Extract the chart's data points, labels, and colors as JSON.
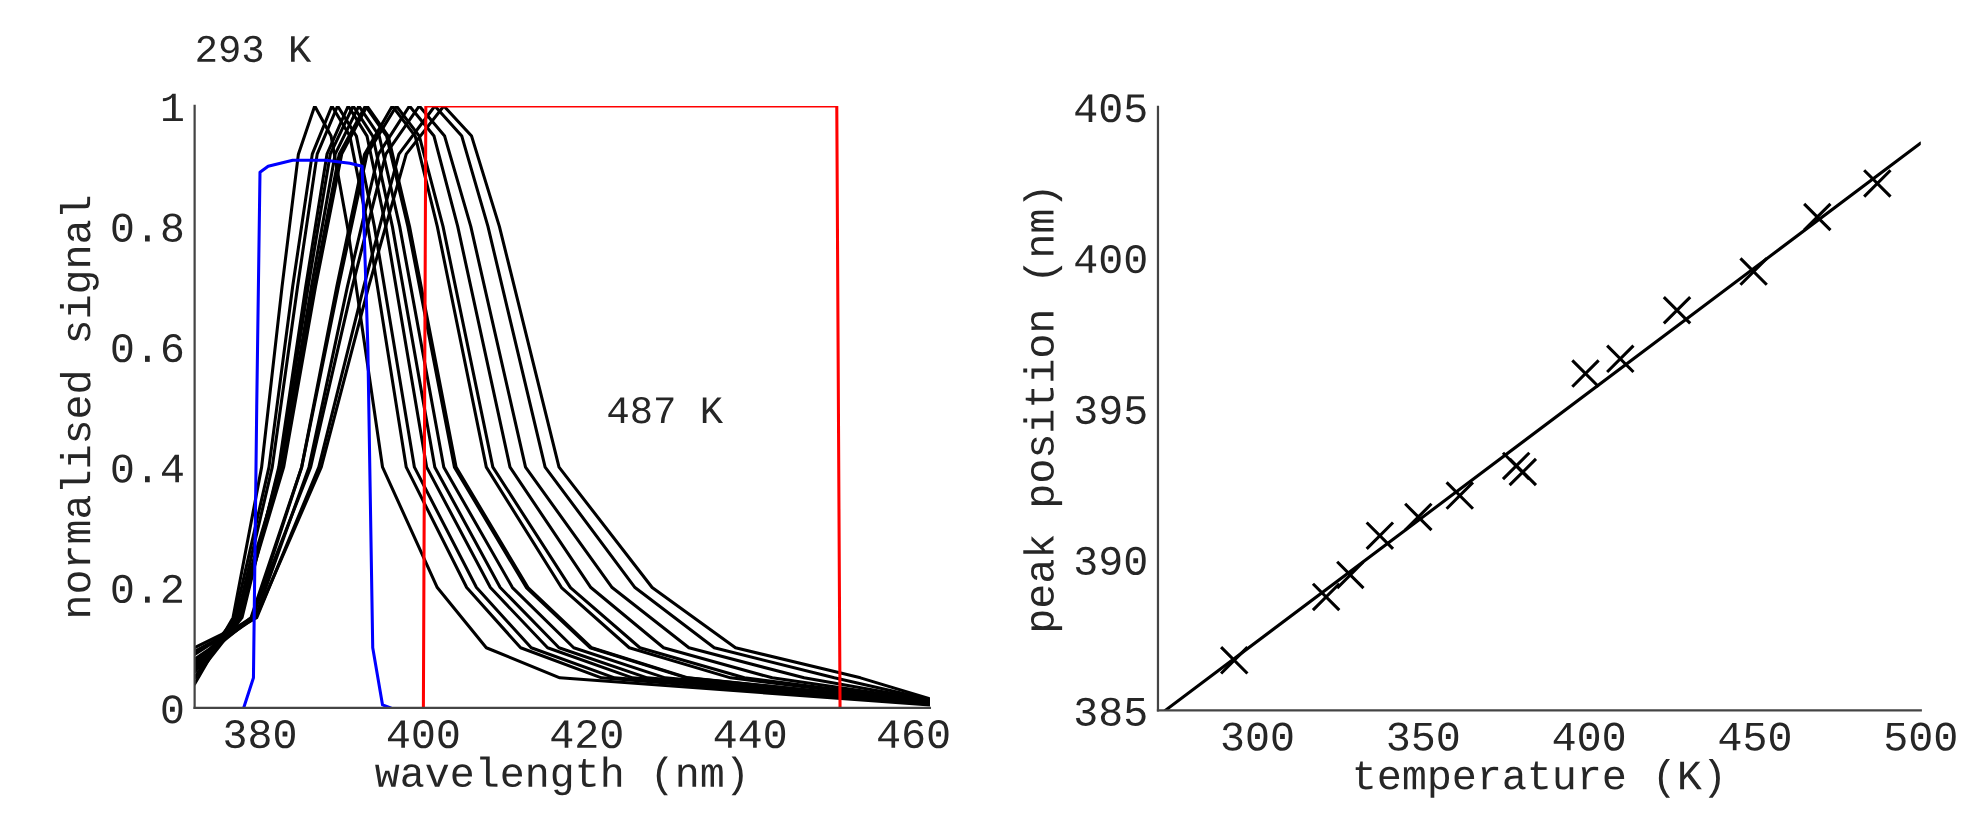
{
  "chart_data": [
    {
      "type": "line",
      "xlabel": "wavelength (nm)",
      "ylabel": "normalised signal",
      "xlim": [
        372,
        462
      ],
      "xticks": [
        380,
        400,
        420,
        440,
        460
      ],
      "ylim": [
        0,
        1
      ],
      "yticks": [
        0,
        0.2,
        0.4,
        0.6,
        0.8,
        1
      ],
      "grid": false,
      "legend": false,
      "marker": "none",
      "line_style": "solid",
      "annotations": [
        "293 K",
        "487 K"
      ],
      "series": [
        {
          "color": "#000000",
          "x": [
            372,
            376.7,
            380.2,
            382.7,
            384.7,
            386.7,
            388.7,
            390.7,
            395.0,
            401.7,
            407.7,
            416.7,
            462
          ],
          "values": [
            0.04,
            0.15,
            0.4,
            0.7,
            0.92,
            1,
            0.95,
            0.8,
            0.4,
            0.2,
            0.1,
            0.05,
            0.005
          ]
        },
        {
          "color": "#000000",
          "x": [
            372,
            376.9,
            381.1,
            384.0,
            386.4,
            388.8,
            391.0,
            393.2,
            397.9,
            405.3,
            411.9,
            421.8,
            462
          ],
          "values": [
            0.05,
            0.15,
            0.4,
            0.7,
            0.92,
            1,
            0.95,
            0.8,
            0.4,
            0.2,
            0.1,
            0.05,
            0.006
          ]
        },
        {
          "color": "#000000",
          "x": [
            372,
            377.2,
            381.5,
            384.6,
            387.0,
            389.5,
            391.8,
            394.0,
            398.9,
            406.5,
            413.2,
            423.4,
            462
          ],
          "values": [
            0.05,
            0.15,
            0.4,
            0.7,
            0.92,
            1,
            0.95,
            0.8,
            0.4,
            0.2,
            0.1,
            0.05,
            0.007
          ]
        },
        {
          "color": "#000000",
          "x": [
            372,
            377.8,
            382.3,
            385.6,
            388.2,
            390.8,
            393.1,
            395.4,
            400.4,
            408.2,
            415.2,
            425.6,
            462
          ],
          "values": [
            0.05,
            0.15,
            0.4,
            0.7,
            0.92,
            1,
            0.95,
            0.8,
            0.4,
            0.2,
            0.1,
            0.05,
            0.007
          ]
        },
        {
          "color": "#000000",
          "x": [
            372,
            377.6,
            382.4,
            385.9,
            388.6,
            391.4,
            393.8,
            396.2,
            401.4,
            409.4,
            416.6,
            427.4,
            462
          ],
          "values": [
            0.06,
            0.15,
            0.4,
            0.7,
            0.92,
            1,
            0.95,
            0.8,
            0.4,
            0.2,
            0.1,
            0.05,
            0.008
          ]
        },
        {
          "color": "#000000",
          "x": [
            372,
            377.5,
            382.6,
            386.3,
            389.2,
            392.1,
            394.6,
            397.1,
            402.5,
            410.9,
            418.4,
            429.6,
            462
          ],
          "values": [
            0.06,
            0.15,
            0.4,
            0.7,
            0.92,
            1,
            0.95,
            0.8,
            0.4,
            0.2,
            0.1,
            0.05,
            0.009
          ]
        },
        {
          "color": "#000000",
          "x": [
            372,
            377.4,
            382.9,
            386.8,
            390.0,
            393.1,
            395.7,
            398.3,
            404.0,
            412.8,
            420.6,
            432.4,
            462
          ],
          "values": [
            0.066,
            0.15,
            0.4,
            0.7,
            0.92,
            1,
            0.95,
            0.8,
            0.4,
            0.2,
            0.1,
            0.05,
            0.009
          ]
        },
        {
          "color": "#000000",
          "x": [
            372,
            377.1,
            382.6,
            386.6,
            389.7,
            392.9,
            395.5,
            398.1,
            403.8,
            412.6,
            420.4,
            432.2,
            462
          ],
          "values": [
            0.067,
            0.15,
            0.4,
            0.7,
            0.92,
            1,
            0.95,
            0.8,
            0.4,
            0.2,
            0.1,
            0.05,
            0.009
          ]
        },
        {
          "color": "#000000",
          "x": [
            372,
            379.1,
            385.1,
            389.4,
            392.8,
            396.2,
            399.0,
            401.7,
            407.7,
            416.9,
            425.2,
            437.6,
            462
          ],
          "values": [
            0.073,
            0.15,
            0.4,
            0.7,
            0.92,
            1,
            0.95,
            0.8,
            0.4,
            0.2,
            0.1,
            0.05,
            0.01
          ]
        },
        {
          "color": "#000000",
          "x": [
            372,
            378.9,
            385.1,
            389.6,
            393.1,
            396.7,
            399.5,
            402.4,
            408.5,
            418.0,
            426.5,
            439.3,
            462
          ],
          "values": [
            0.076,
            0.15,
            0.4,
            0.7,
            0.92,
            1,
            0.95,
            0.8,
            0.4,
            0.2,
            0.1,
            0.05,
            0.011
          ]
        },
        {
          "color": "#000000",
          "x": [
            372,
            379.4,
            386.0,
            390.7,
            394.5,
            398.3,
            401.3,
            404.2,
            410.6,
            420.5,
            429.4,
            442.7,
            462
          ],
          "values": [
            0.081,
            0.15,
            0.4,
            0.7,
            0.92,
            1,
            0.95,
            0.8,
            0.4,
            0.2,
            0.1,
            0.05,
            0.012
          ]
        },
        {
          "color": "#000000",
          "x": [
            372,
            379.0,
            386.2,
            391.3,
            395.4,
            399.5,
            402.6,
            405.8,
            412.5,
            423.1,
            432.5,
            446.6,
            462
          ],
          "values": [
            0.089,
            0.15,
            0.4,
            0.7,
            0.92,
            1,
            0.95,
            0.8,
            0.4,
            0.2,
            0.1,
            0.05,
            0.013
          ]
        },
        {
          "color": "#000000",
          "x": [
            372,
            379.6,
            387.2,
            392.7,
            397.0,
            401.4,
            404.7,
            407.9,
            414.9,
            425.9,
            435.6,
            450.3,
            462
          ],
          "values": [
            0.094,
            0.15,
            0.4,
            0.7,
            0.92,
            1,
            0.95,
            0.8,
            0.4,
            0.2,
            0.1,
            0.05,
            0.014
          ]
        },
        {
          "color": "#000000",
          "x": [
            372,
            379.5,
            387.5,
            393.3,
            397.9,
            402.5,
            405.9,
            409.3,
            416.6,
            428.0,
            438.2,
            453.5,
            462
          ],
          "values": [
            0.1,
            0.15,
            0.4,
            0.7,
            0.92,
            1,
            0.95,
            0.8,
            0.4,
            0.2,
            0.1,
            0.05,
            0.015
          ]
        },
        {
          "color": "#ff0000",
          "x": [
            400,
            400.3,
            450.6,
            451
          ],
          "values": [
            0,
            1,
            1,
            0
          ]
        },
        {
          "color": "#0000ff",
          "x": [
            378,
            379.2,
            379.6,
            380.0,
            381,
            384,
            388,
            391,
            392.5,
            393.2,
            393.8,
            395,
            396
          ],
          "values": [
            0,
            0.05,
            0.5,
            0.89,
            0.9,
            0.91,
            0.91,
            0.905,
            0.9,
            0.6,
            0.1,
            0.005,
            0
          ]
        }
      ]
    },
    {
      "type": "scatter",
      "xlabel": "temperature (K)",
      "ylabel": "peak position (nm)",
      "xlim": [
        270,
        500
      ],
      "xticks": [
        300,
        350,
        400,
        450,
        500
      ],
      "ylim": [
        385,
        405
      ],
      "yticks": [
        385,
        390,
        395,
        400,
        405
      ],
      "grid": false,
      "legend": false,
      "x": [
        293,
        320.7,
        328,
        336.9,
        348.5,
        361,
        378,
        380,
        398.9,
        409.4,
        426.5,
        449.6,
        468.8,
        486.9
      ],
      "series": [
        {
          "color": "#000000",
          "marker": "cross",
          "values": [
            386.66,
            388.76,
            389.49,
            390.79,
            391.41,
            392.12,
            393.1,
            392.9,
            396.16,
            396.65,
            398.26,
            399.54,
            401.35,
            402.46
          ]
        },
        {
          "type": "line",
          "color": "#000000",
          "x": [
            272.2,
            500
          ],
          "values": [
            385,
            403.8
          ]
        }
      ]
    }
  ]
}
